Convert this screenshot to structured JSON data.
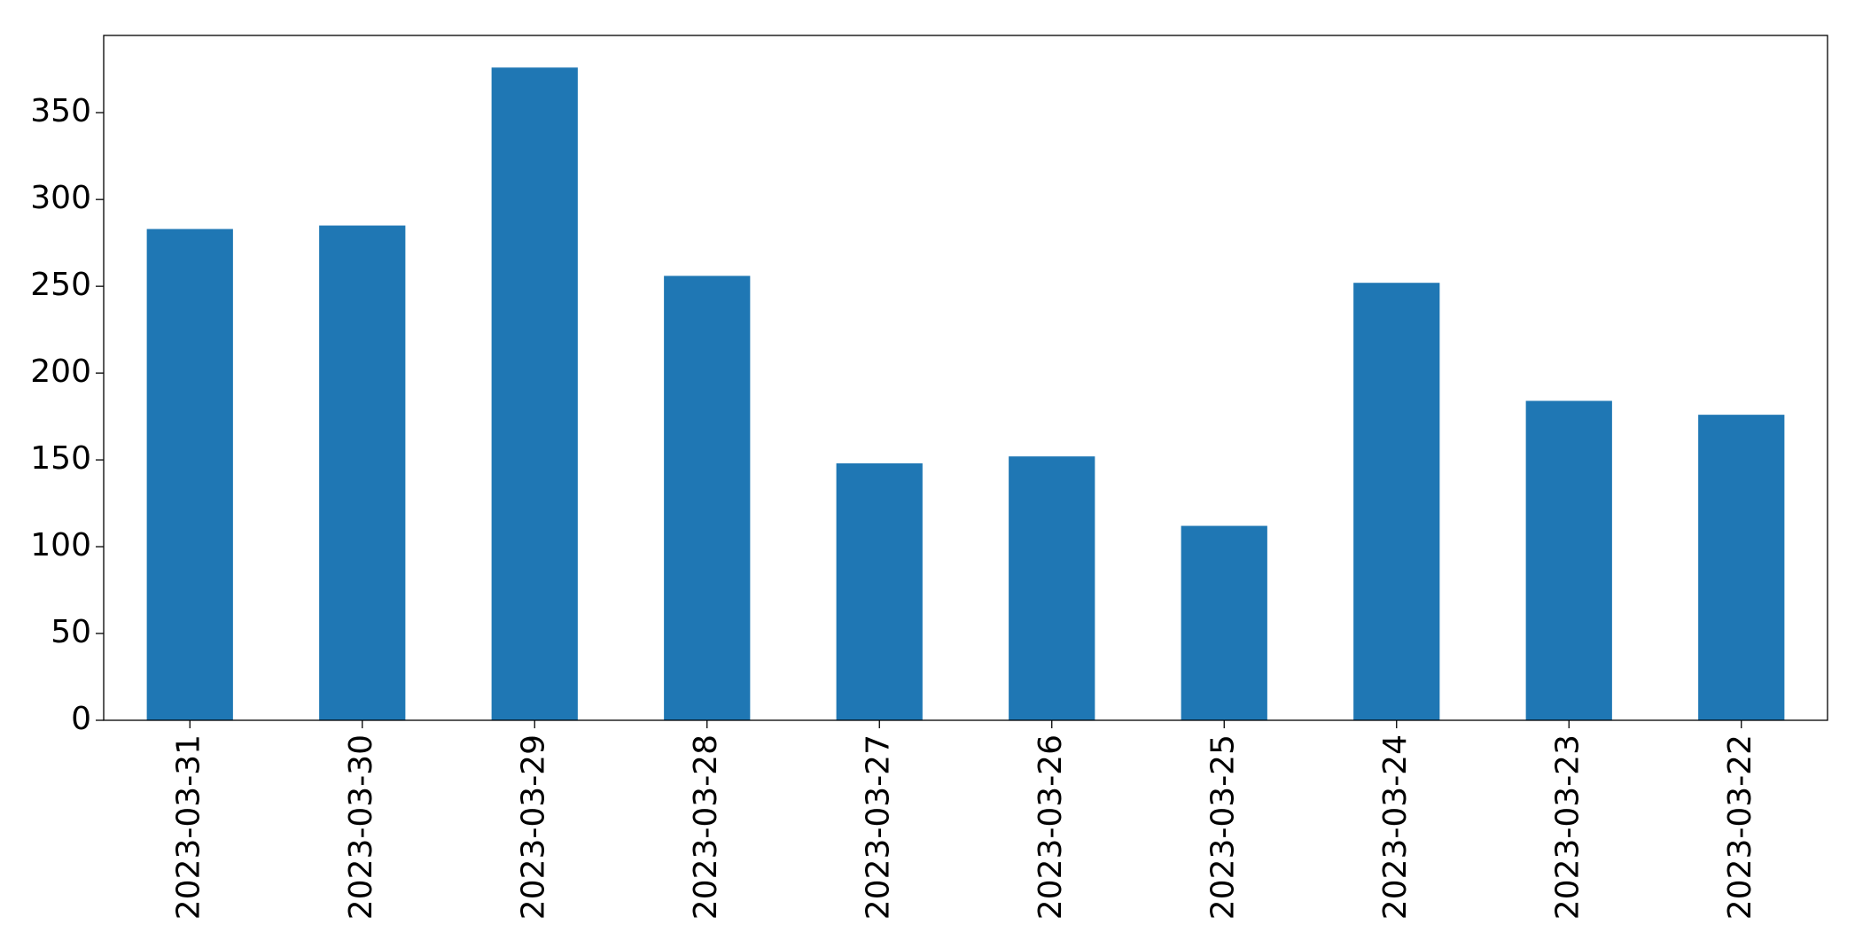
{
  "chart_data": {
    "type": "bar",
    "categories": [
      "2023-03-31",
      "2023-03-30",
      "2023-03-29",
      "2023-03-28",
      "2023-03-27",
      "2023-03-26",
      "2023-03-25",
      "2023-03-24",
      "2023-03-23",
      "2023-03-22"
    ],
    "values": [
      283,
      285,
      376,
      256,
      148,
      152,
      112,
      252,
      184,
      176
    ],
    "color": "#1f77b4",
    "ylim": [
      0,
      394.5
    ],
    "yticks": [
      0,
      50,
      100,
      150,
      200,
      250,
      300,
      350
    ],
    "grid": false
  }
}
